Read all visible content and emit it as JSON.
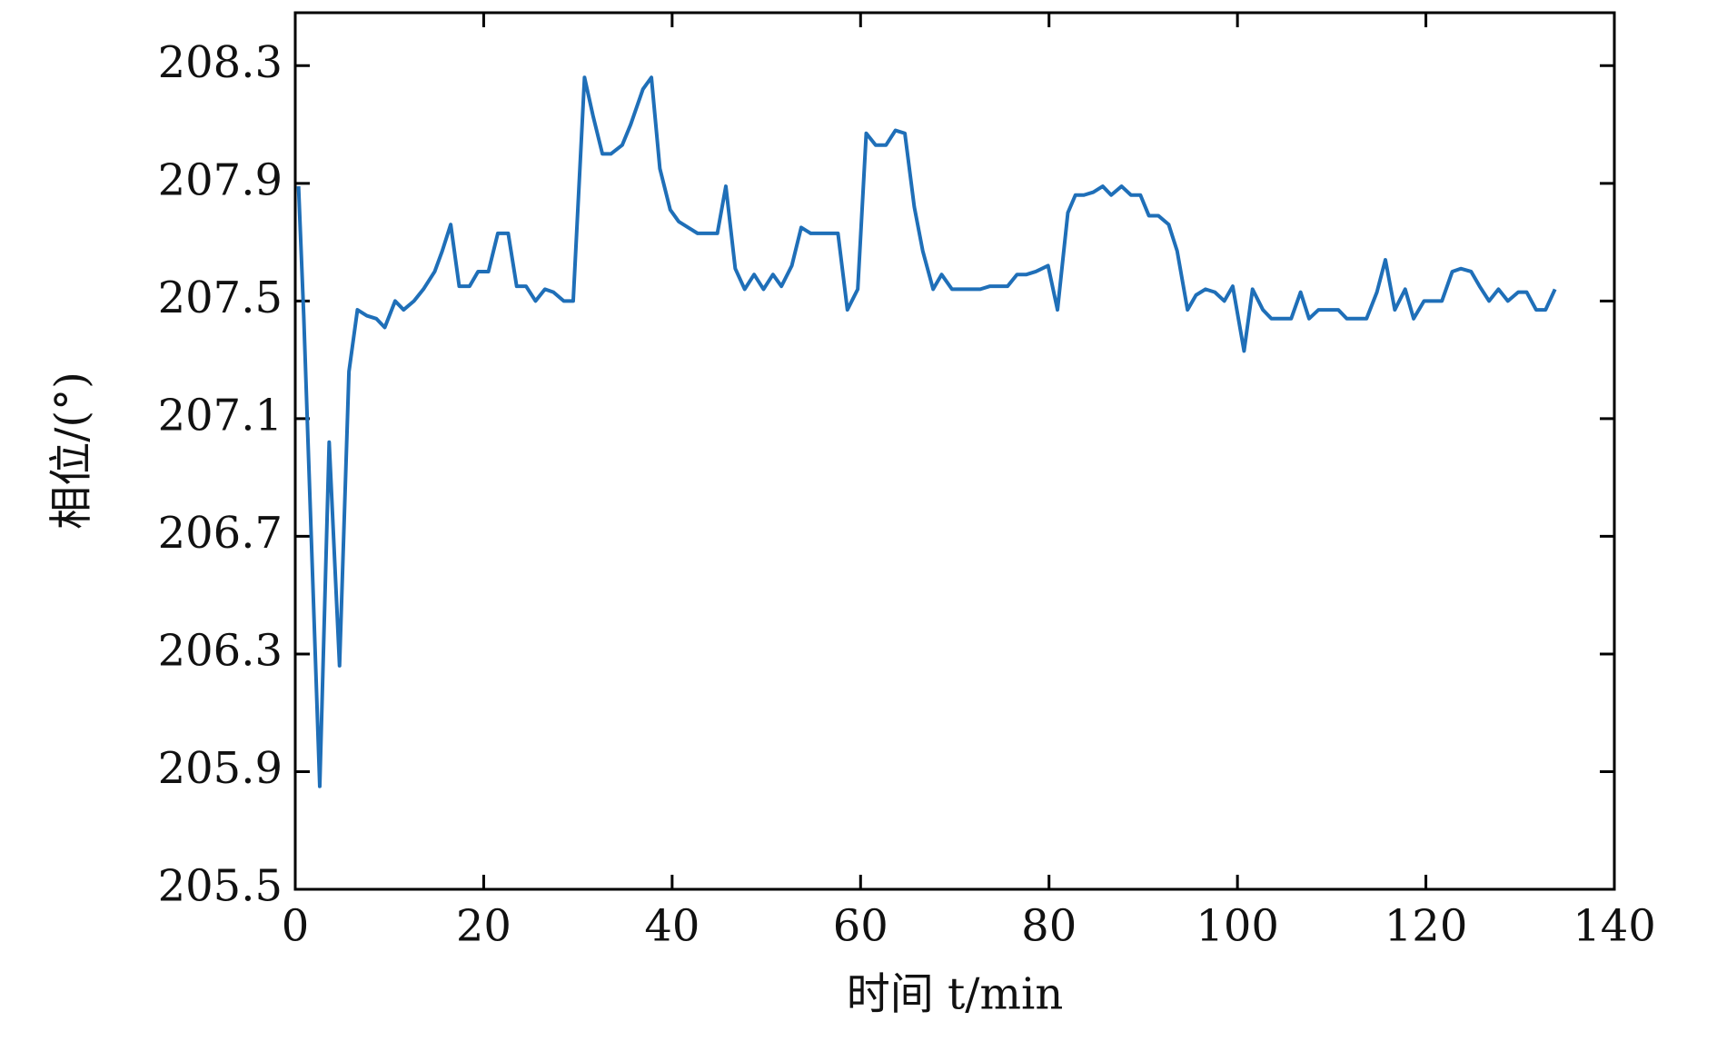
{
  "chart_data": {
    "type": "line",
    "xlabel": "时间 t/min",
    "ylabel": "相位/(°)",
    "x": [
      0.35,
      0.9,
      2.6,
      3.6,
      4.7,
      5.7,
      6.6,
      7.6,
      8.6,
      9.5,
      10.6,
      11.5,
      12.6,
      13.6,
      14.8,
      15.6,
      16.5,
      17.4,
      18.5,
      19.4,
      20.5,
      21.5,
      22.6,
      23.5,
      24.5,
      25.5,
      26.5,
      27.4,
      28.5,
      29.5,
      30.7,
      31.6,
      32.6,
      33.5,
      34.7,
      35.6,
      36.9,
      37.8,
      38.7,
      39.8,
      40.7,
      41.7,
      42.7,
      43.7,
      44.8,
      45.7,
      46.7,
      47.7,
      48.7,
      49.7,
      50.7,
      51.6,
      52.7,
      53.7,
      54.7,
      55.7,
      56.6,
      57.6,
      58.6,
      59.7,
      60.6,
      61.6,
      62.7,
      63.7,
      64.7,
      65.7,
      66.6,
      67.7,
      68.6,
      69.7,
      70.6,
      71.6,
      72.7,
      73.7,
      74.7,
      75.6,
      76.6,
      77.6,
      78.6,
      79.9,
      80.9,
      82.0,
      82.8,
      83.7,
      84.7,
      85.7,
      86.6,
      87.7,
      88.7,
      89.7,
      90.6,
      91.6,
      92.7,
      93.6,
      94.7,
      95.6,
      96.6,
      97.6,
      98.6,
      99.5,
      100.7,
      101.6,
      102.7,
      103.6,
      104.7,
      105.7,
      106.7,
      107.6,
      108.6,
      109.7,
      110.7,
      111.6,
      112.7,
      113.7,
      114.8,
      115.7,
      116.7,
      117.8,
      118.7,
      119.8,
      120.7,
      121.7,
      122.8,
      123.7,
      124.8,
      125.7,
      126.7,
      127.7,
      128.7,
      129.8,
      130.7,
      131.7,
      132.7,
      133.7
    ],
    "series": [
      {
        "color": "#1f6fb8",
        "values": [
          207.89,
          207.45,
          205.85,
          207.02,
          206.26,
          207.26,
          207.47,
          207.45,
          207.44,
          207.41,
          207.5,
          207.47,
          207.5,
          207.54,
          207.6,
          207.67,
          207.76,
          207.55,
          207.55,
          207.6,
          207.6,
          207.73,
          207.73,
          207.55,
          207.55,
          207.5,
          207.54,
          207.53,
          207.5,
          207.5,
          208.26,
          208.13,
          208.0,
          208.0,
          208.03,
          208.1,
          208.22,
          208.26,
          207.95,
          207.81,
          207.77,
          207.75,
          207.73,
          207.73,
          207.73,
          207.89,
          207.61,
          207.54,
          207.59,
          207.54,
          207.59,
          207.55,
          207.62,
          207.75,
          207.73,
          207.73,
          207.73,
          207.73,
          207.47,
          207.54,
          208.07,
          208.03,
          208.03,
          208.08,
          208.07,
          207.82,
          207.67,
          207.54,
          207.59,
          207.54,
          207.54,
          207.54,
          207.54,
          207.55,
          207.55,
          207.55,
          207.59,
          207.59,
          207.6,
          207.62,
          207.47,
          207.8,
          207.86,
          207.86,
          207.87,
          207.89,
          207.86,
          207.89,
          207.86,
          207.86,
          207.79,
          207.79,
          207.76,
          207.67,
          207.47,
          207.52,
          207.54,
          207.53,
          207.5,
          207.55,
          207.33,
          207.54,
          207.47,
          207.44,
          207.44,
          207.44,
          207.53,
          207.44,
          207.47,
          207.47,
          207.47,
          207.44,
          207.44,
          207.44,
          207.53,
          207.64,
          207.47,
          207.54,
          207.44,
          207.5,
          207.5,
          207.5,
          207.6,
          207.61,
          207.6,
          207.55,
          207.5,
          207.54,
          207.5,
          207.53,
          207.53,
          207.47,
          207.47,
          207.54
        ]
      }
    ],
    "xlim": [
      0,
      140
    ],
    "xticks": [
      0,
      20,
      40,
      60,
      80,
      100,
      120,
      140
    ],
    "ylim": [
      205.5,
      208.48
    ],
    "yticks": [
      205.5,
      205.9,
      206.3,
      206.7,
      207.1,
      207.5,
      207.9,
      208.3
    ]
  }
}
